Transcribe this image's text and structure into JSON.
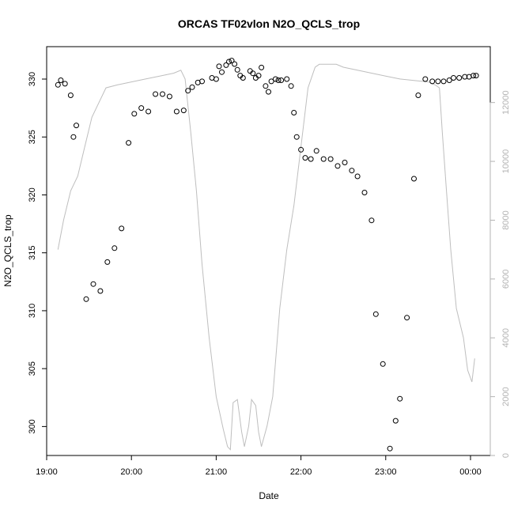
{
  "chart_data": {
    "type": "scatter",
    "title": "ORCAS TF02vlon N2O_QCLS_trop",
    "xlabel": "Date",
    "ylabel": "N2O_QCLS_trop",
    "x_ticks": [
      "19:00",
      "20:00",
      "21:00",
      "22:00",
      "23:00",
      "00:00"
    ],
    "y_ticks": [
      300,
      305,
      310,
      315,
      320,
      325,
      330
    ],
    "y_right_ticks": [
      0,
      2000,
      4000,
      6000,
      8000,
      10000,
      12000
    ],
    "xlim": [
      "19:00",
      "00:14"
    ],
    "ylim": [
      297.5,
      332.8
    ],
    "y_right_lim": [
      0,
      13900
    ],
    "grid": false,
    "colors": {
      "points": "#000000",
      "line": "#bebebe",
      "right_axis": "#b3b3b3"
    },
    "series": [
      {
        "type": "scatter",
        "x": [
          "19:08",
          "19:10",
          "19:13",
          "19:17",
          "19:19",
          "19:21",
          "19:28",
          "19:33",
          "19:38",
          "19:43",
          "19:48",
          "19:53",
          "19:58",
          "20:02",
          "20:07",
          "20:12",
          "20:17",
          "20:22",
          "20:27",
          "20:32",
          "20:37",
          "20:40",
          "20:43",
          "20:47",
          "20:50",
          "20:57",
          "21:00",
          "21:02",
          "21:04",
          "21:07",
          "21:09",
          "21:11",
          "21:13",
          "21:15",
          "21:17",
          "21:19",
          "21:24",
          "21:26",
          "21:28",
          "21:30",
          "21:32",
          "21:35",
          "21:37",
          "21:39",
          "21:42",
          "21:44",
          "21:46",
          "21:50",
          "21:53",
          "21:55",
          "21:57",
          "22:00",
          "22:03",
          "22:07",
          "22:11",
          "22:16",
          "22:21",
          "22:26",
          "22:31",
          "22:36",
          "22:40",
          "22:45",
          "22:50",
          "22:53",
          "22:58",
          "23:03",
          "23:07",
          "23:10",
          "23:15",
          "23:20",
          "23:23",
          "23:28",
          "23:33",
          "23:37",
          "23:41",
          "23:45",
          "23:48",
          "23:52",
          "23:56",
          "23:59",
          "00:02",
          "00:04"
        ],
        "y": [
          329.5,
          329.9,
          329.6,
          328.6,
          325.0,
          326.0,
          311.0,
          312.3,
          311.7,
          314.2,
          315.4,
          317.1,
          324.5,
          327.0,
          327.5,
          327.2,
          328.7,
          328.7,
          328.5,
          327.2,
          327.3,
          329.0,
          329.3,
          329.7,
          329.8,
          330.1,
          330.0,
          331.1,
          330.6,
          331.2,
          331.5,
          331.6,
          331.3,
          330.8,
          330.3,
          330.1,
          330.7,
          330.5,
          330.1,
          330.3,
          331.0,
          329.4,
          328.9,
          329.8,
          330.0,
          329.9,
          329.9,
          330.0,
          329.4,
          327.1,
          325.0,
          323.9,
          323.2,
          323.1,
          323.8,
          323.1,
          323.1,
          322.5,
          322.8,
          322.1,
          321.6,
          320.2,
          317.8,
          309.7,
          305.4,
          298.1,
          300.5,
          302.4,
          309.4,
          321.4,
          328.6,
          330.0,
          329.8,
          329.8,
          329.8,
          329.9,
          330.1,
          330.1,
          330.2,
          330.2,
          330.3,
          330.3
        ]
      },
      {
        "type": "line",
        "axis": "right",
        "x": [
          "19:08",
          "19:12",
          "19:17",
          "19:22",
          "19:27",
          "19:32",
          "19:37",
          "19:42",
          "19:50",
          "20:00",
          "20:10",
          "20:20",
          "20:30",
          "20:35",
          "20:38",
          "20:42",
          "20:46",
          "20:50",
          "20:55",
          "21:00",
          "21:05",
          "21:08",
          "21:10",
          "21:12",
          "21:15",
          "21:18",
          "21:20",
          "21:23",
          "21:25",
          "21:28",
          "21:30",
          "21:32",
          "21:36",
          "21:40",
          "21:45",
          "21:50",
          "21:55",
          "22:00",
          "22:05",
          "22:10",
          "22:13",
          "22:17",
          "22:20",
          "22:25",
          "22:30",
          "22:40",
          "22:50",
          "23:00",
          "23:10",
          "23:20",
          "23:30",
          "23:35",
          "23:38",
          "23:40",
          "23:43",
          "23:46",
          "23:50",
          "23:55",
          "23:58",
          "00:01",
          "00:03"
        ],
        "y": [
          7000,
          8000,
          9000,
          9500,
          10500,
          11500,
          12000,
          12500,
          12600,
          12700,
          12800,
          12900,
          13000,
          13100,
          12800,
          11000,
          9000,
          6500,
          4000,
          2000,
          900,
          300,
          200,
          1800,
          1900,
          800,
          300,
          1000,
          1900,
          1700,
          800,
          300,
          1000,
          2000,
          5000,
          7000,
          8500,
          10500,
          12500,
          13200,
          13300,
          13300,
          13300,
          13300,
          13200,
          13100,
          13000,
          12900,
          12800,
          12750,
          12700,
          12600,
          12500,
          11000,
          9000,
          7000,
          5000,
          4000,
          2900,
          2500,
          3300
        ]
      }
    ]
  }
}
